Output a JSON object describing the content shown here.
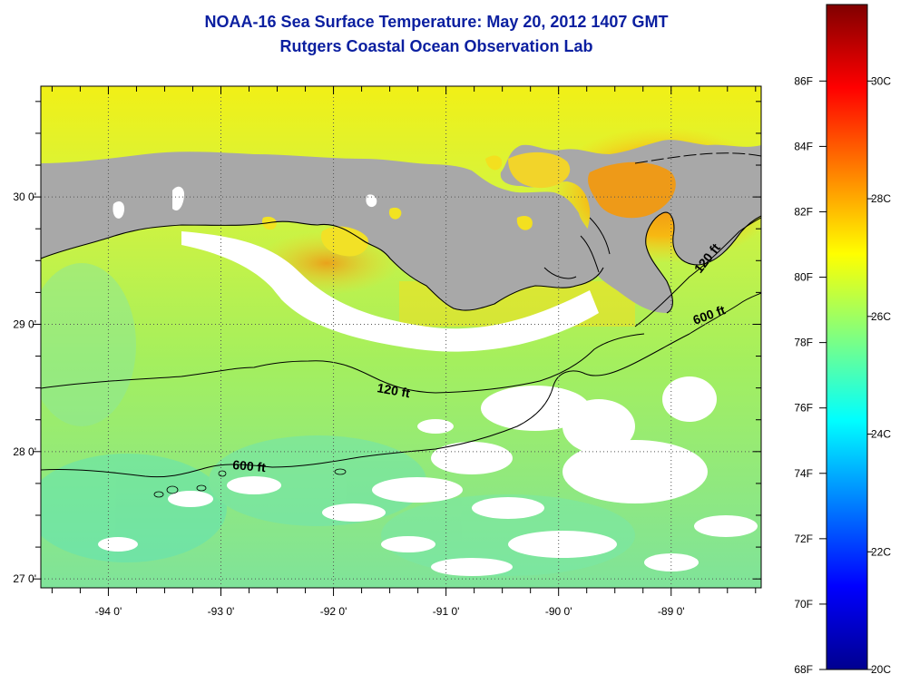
{
  "title": {
    "line1": "NOAA-16 Sea Surface Temperature:  May 20, 2012 1407 GMT",
    "line2": "Rutgers Coastal Ocean Observation Lab"
  },
  "map": {
    "lon_range": [
      -94.6,
      -88.2
    ],
    "lat_range": [
      26.93,
      30.87
    ],
    "lat_ticks": [
      {
        "value": 27,
        "label": "27 0'"
      },
      {
        "value": 28,
        "label": "28 0'"
      },
      {
        "value": 29,
        "label": "29 0'"
      },
      {
        "value": 30,
        "label": "30 0'"
      }
    ],
    "lon_ticks": [
      {
        "value": -94,
        "label": "-94 0'"
      },
      {
        "value": -93,
        "label": "-93 0'"
      },
      {
        "value": -92,
        "label": "-92 0'"
      },
      {
        "value": -91,
        "label": "-91 0'"
      },
      {
        "value": -90,
        "label": "-90 0'"
      },
      {
        "value": -89,
        "label": "-89 0'"
      }
    ],
    "grid": "dotted",
    "contours": [
      {
        "label": "120 ft"
      },
      {
        "label": "600 ft"
      },
      {
        "label": "120 ft"
      },
      {
        "label": "600 ft"
      }
    ],
    "colors": {
      "land": "#a8a8a8",
      "cloud": "#ffffff",
      "coast": "#000000"
    }
  },
  "colorbar": {
    "fahrenheit_labels": [
      "86F",
      "84F",
      "82F",
      "80F",
      "78F",
      "76F",
      "74F",
      "72F",
      "70F",
      "68F"
    ],
    "celsius_labels": [
      "30C",
      "28C",
      "26C",
      "24C",
      "22C",
      "20C"
    ],
    "range_c": [
      20,
      31.3
    ],
    "colormap": "jet"
  }
}
